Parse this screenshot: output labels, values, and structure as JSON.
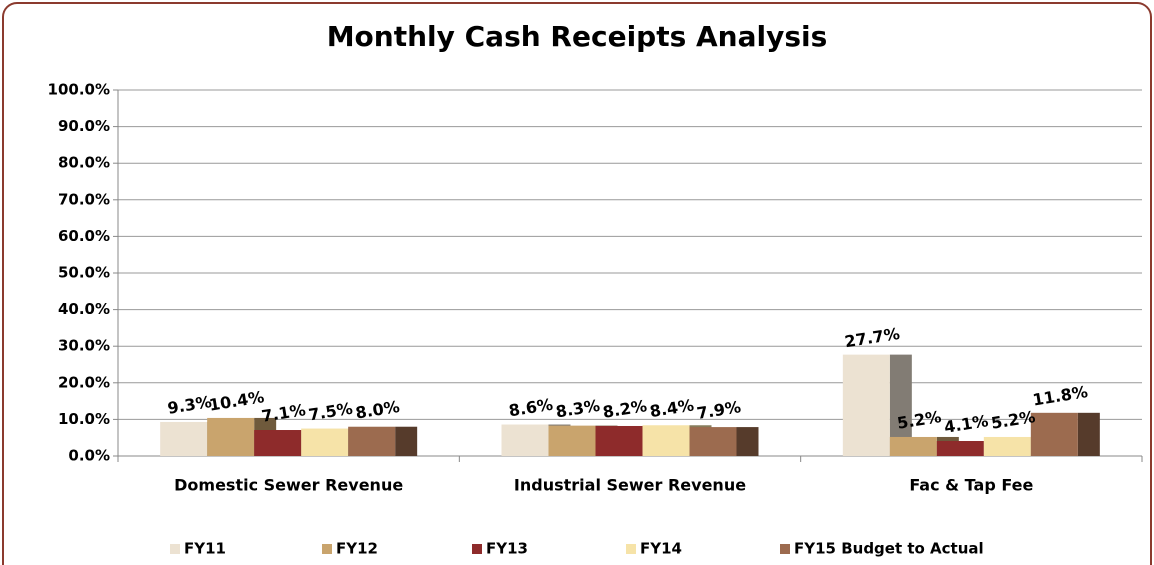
{
  "chart_data": {
    "type": "bar",
    "title": "Monthly Cash Receipts Analysis",
    "categories": [
      "Domestic Sewer Revenue",
      "Industrial Sewer Revenue",
      "Fac & Tap Fee"
    ],
    "series": [
      {
        "name": "FY11",
        "color": "#ece2d2",
        "values": [
          9.3,
          8.6,
          27.7
        ],
        "value_labels": [
          "9.3%",
          "8.6%",
          "27.7%"
        ]
      },
      {
        "name": "FY12",
        "color": "#c9a46d",
        "values": [
          10.4,
          8.3,
          5.2
        ],
        "value_labels": [
          "10.4%",
          "8.3%",
          "5.2%"
        ]
      },
      {
        "name": "FY13",
        "color": "#8e2b2b",
        "values": [
          7.1,
          8.2,
          4.1
        ],
        "value_labels": [
          "7.1%",
          "8.2%",
          "4.1%"
        ]
      },
      {
        "name": "FY14",
        "color": "#f6e3a8",
        "values": [
          7.5,
          8.4,
          5.2
        ],
        "value_labels": [
          "7.5%",
          "8.4%",
          "5.2%"
        ]
      },
      {
        "name": "FY15 Budget to Actual",
        "color": "#9c6b4f",
        "values": [
          8.0,
          7.9,
          11.8
        ],
        "value_labels": [
          "8.0%",
          "7.9%",
          "11.8%"
        ]
      }
    ],
    "ylim": [
      0,
      100
    ],
    "yticks": [
      {
        "value": 0,
        "label": "0.0%"
      },
      {
        "value": 10,
        "label": "10.0%"
      },
      {
        "value": 20,
        "label": "20.0%"
      },
      {
        "value": 30,
        "label": "30.0%"
      },
      {
        "value": 40,
        "label": "40.0%"
      },
      {
        "value": 50,
        "label": "50.0%"
      },
      {
        "value": 60,
        "label": "60.0%"
      },
      {
        "value": 70,
        "label": "70.0%"
      },
      {
        "value": 80,
        "label": "80.0%"
      },
      {
        "value": 90,
        "label": "90.0%"
      },
      {
        "value": 100,
        "label": "100.0%"
      }
    ],
    "grid": true,
    "legend": "bottom"
  }
}
